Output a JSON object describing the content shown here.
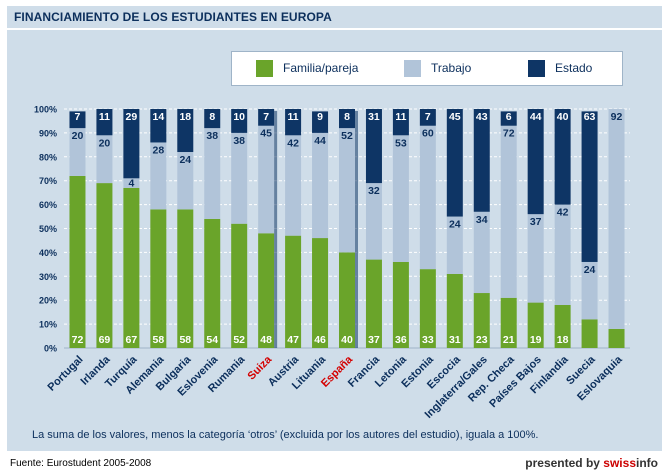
{
  "title": "FINANCIAMIENTO DE LOS ESTUDIANTES EN EUROPA",
  "note": "La suma de los valores, menos la categoría ‘otros’ (excluida por los autores del estudio), iguala a 100%.",
  "source": "Fuente: Eurostudent 2005-2008",
  "credit": {
    "prefix": "presented by ",
    "brand_red": "swiss",
    "brand_dark": "info"
  },
  "colors": {
    "familia": "#6aa42a",
    "trabajo": "#b1c4d9",
    "estado": "#0e3565",
    "highlight": "#d40000",
    "text": "#0c2f5c"
  },
  "chart_data": {
    "type": "bar",
    "stacked": true,
    "categories": [
      "Portugal",
      "Irlanda",
      "Turquía",
      "Alemania",
      "Bulgaria",
      "Eslovenia",
      "Rumania",
      "Suiza",
      "Austria",
      "Lituania",
      "España",
      "Francia",
      "Letonia",
      "Estonia",
      "Escocia",
      "Inglaterra/Gales",
      "Rep. Checa",
      "Países Bajos",
      "Finlandia",
      "Suecia",
      "Eslovaquia"
    ],
    "highlighted_categories": [
      "Suiza",
      "España"
    ],
    "series": [
      {
        "name": "Familia/pareja",
        "values": [
          72,
          69,
          67,
          58,
          58,
          54,
          52,
          48,
          47,
          46,
          40,
          37,
          36,
          33,
          31,
          23,
          21,
          19,
          18,
          12,
          8
        ],
        "labels": [
          "72",
          "69",
          "67",
          "58",
          "58",
          "54",
          "52",
          "48",
          "47",
          "46",
          "40",
          "37",
          "36",
          "33",
          "31",
          "23",
          "21",
          "19",
          "18",
          "",
          ""
        ]
      },
      {
        "name": "Trabajo",
        "values": [
          20,
          20,
          4,
          28,
          24,
          38,
          38,
          45,
          42,
          44,
          52,
          32,
          53,
          60,
          24,
          34,
          72,
          37,
          42,
          24,
          92
        ],
        "labels": [
          "20",
          "20",
          "4",
          "28",
          "24",
          "38",
          "38",
          "45",
          "42",
          "44",
          "52",
          "32",
          "53",
          "60",
          "24",
          "34",
          "72",
          "37",
          "42",
          "24",
          "92"
        ]
      },
      {
        "name": "Estado",
        "values": [
          7,
          11,
          29,
          14,
          18,
          8,
          10,
          7,
          11,
          9,
          8,
          31,
          11,
          7,
          45,
          43,
          6,
          44,
          40,
          63,
          0
        ],
        "labels": [
          "7",
          "11",
          "29",
          "14",
          "18",
          "8",
          "10",
          "7",
          "11",
          "9",
          "8",
          "31",
          "11",
          "7",
          "45",
          "43",
          "6",
          "44",
          "40",
          "63",
          ""
        ]
      }
    ],
    "ylim": [
      0,
      100
    ],
    "yticks": [
      "0%",
      "10%",
      "20%",
      "30%",
      "40%",
      "50%",
      "60%",
      "70%",
      "80%",
      "90%",
      "100%"
    ],
    "grid": true,
    "legend_position": "top-right"
  }
}
